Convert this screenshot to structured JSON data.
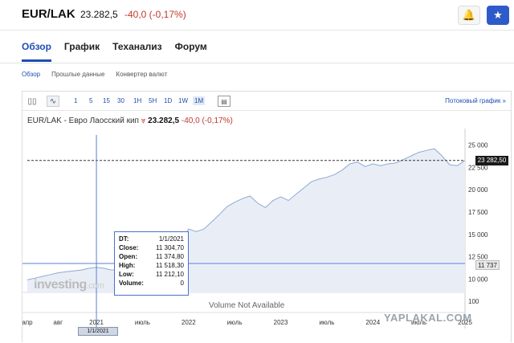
{
  "header": {
    "pair": "EUR/LAK",
    "price": "23.282,5",
    "change": "-40,0 (-0,17%)",
    "alert_icon": "bell-plus-icon",
    "watch_icon": "star-icon"
  },
  "tabs": [
    {
      "label": "Обзор",
      "active": true
    },
    {
      "label": "График",
      "active": false
    },
    {
      "label": "Теханализ",
      "active": false
    },
    {
      "label": "Форум",
      "active": false
    }
  ],
  "subnav": [
    {
      "label": "Обзор",
      "active": true
    },
    {
      "label": "Прошлые данные",
      "active": false
    },
    {
      "label": "Конвертер валют",
      "active": false
    }
  ],
  "toolbar": {
    "timeframes": [
      "1",
      "5",
      "15",
      "30",
      "1H",
      "5H",
      "1D",
      "1W",
      "1M"
    ],
    "active_timeframe": "1M",
    "stream_link": "Потоковый график"
  },
  "chart_title": {
    "name": "EUR/LAK - Евро Лаосский кип",
    "price": "23.282,5",
    "change": "-40,0 (-0,17%)"
  },
  "tooltip": {
    "dt_label": "DT:",
    "dt_value": "1/1/2021",
    "close_label": "Close:",
    "close_value": "11 304,70",
    "open_label": "Open:",
    "open_value": "11 374,80",
    "high_label": "High:",
    "high_value": "11 518,30",
    "low_label": "Low:",
    "low_value": "11 212,10",
    "volume_label": "Volume:",
    "volume_value": "0"
  },
  "crosshair_date": "1/1/2021",
  "price_badge": "23 282,50",
  "cross_badge": "11 737",
  "volume_text": "Volume Not Available",
  "logo": {
    "main": "investing",
    "suffix": ".com"
  },
  "watermark": "YAPLAKAL.COM",
  "chart_data": {
    "type": "area",
    "x": [
      "2020-04",
      "2020-05",
      "2020-06",
      "2020-07",
      "2020-08",
      "2020-09",
      "2020-10",
      "2020-11",
      "2020-12",
      "2021-01",
      "2021-02",
      "2021-03",
      "2021-04",
      "2021-05",
      "2021-06",
      "2021-07",
      "2021-08",
      "2021-09",
      "2021-10",
      "2021-11",
      "2021-12",
      "2022-01",
      "2022-02",
      "2022-03",
      "2022-04",
      "2022-05",
      "2022-06",
      "2022-07",
      "2022-08",
      "2022-09",
      "2022-10",
      "2022-11",
      "2022-12",
      "2023-01",
      "2023-02",
      "2023-03",
      "2023-04",
      "2023-05",
      "2023-06",
      "2023-07",
      "2023-08",
      "2023-09",
      "2023-10",
      "2023-11",
      "2023-12",
      "2024-01",
      "2024-02",
      "2024-03",
      "2024-04",
      "2024-05",
      "2024-06",
      "2024-07",
      "2024-08",
      "2024-09",
      "2024-10",
      "2024-11",
      "2024-12",
      "2025-01"
    ],
    "y": [
      9900,
      10100,
      10300,
      10500,
      10700,
      10800,
      10900,
      11000,
      11200,
      11305,
      11200,
      11000,
      11100,
      11300,
      11500,
      11700,
      11900,
      12000,
      12100,
      12300,
      14000,
      15600,
      15300,
      15600,
      16400,
      17200,
      18100,
      18600,
      19000,
      19300,
      18500,
      18000,
      18800,
      19200,
      18800,
      19500,
      20200,
      20900,
      21200,
      21400,
      21700,
      22200,
      22900,
      23100,
      22600,
      22900,
      22700,
      22900,
      23000,
      23400,
      23800,
      24200,
      24400,
      24600,
      23800,
      22800,
      22700,
      23280
    ],
    "xticks": [
      "апр",
      "авг",
      "2021",
      "июль",
      "2022",
      "июль",
      "2023",
      "июль",
      "2024",
      "июль",
      "2025"
    ],
    "yticks": [
      25000,
      22500,
      20000,
      17500,
      15000,
      12500,
      10000
    ],
    "ylim": [
      8500,
      26500
    ],
    "volume_ylabel": "100",
    "last_value": 23282.5,
    "crosshair_value": 11737
  }
}
